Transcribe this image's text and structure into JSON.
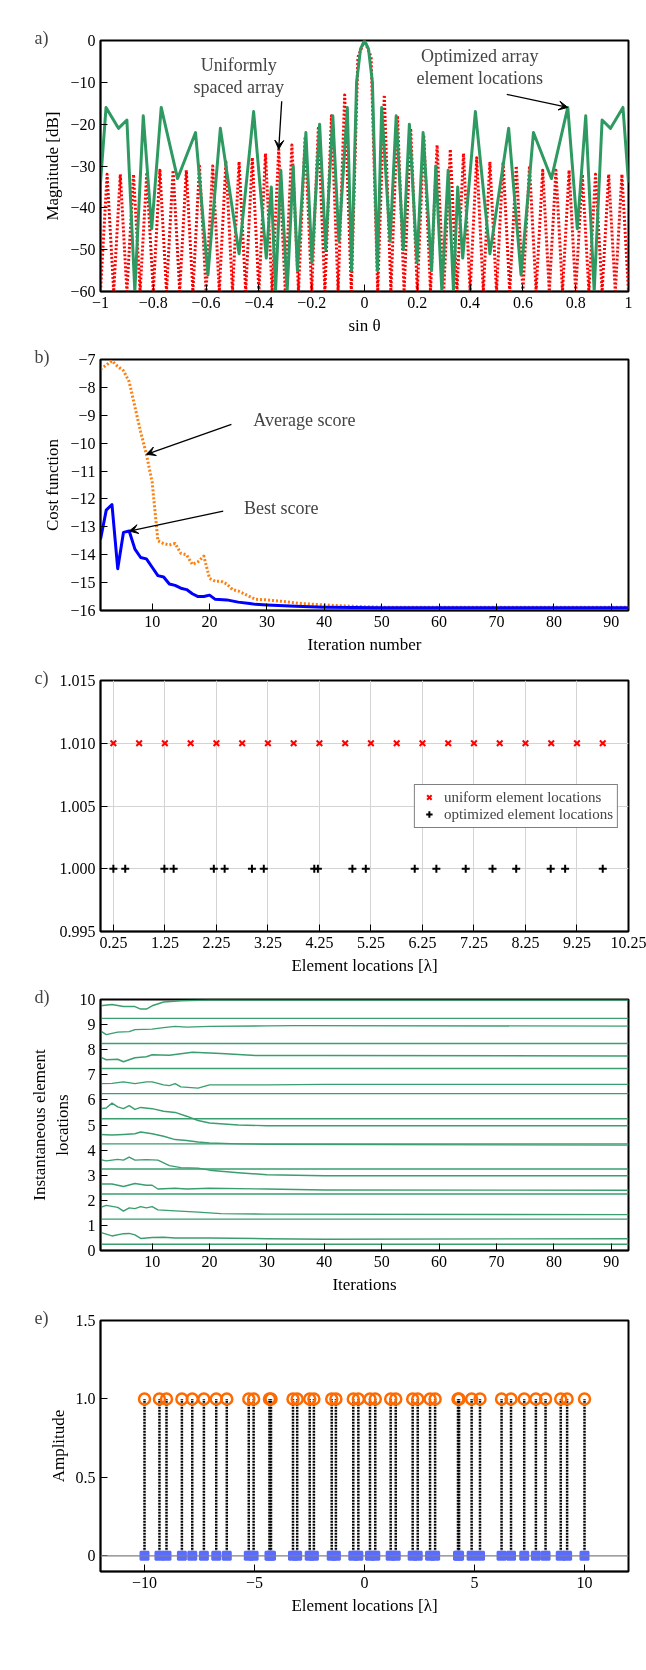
{
  "chart_data": [
    {
      "type": "line",
      "xlabel": "sin θ",
      "ylabel": "Magnitude [dB]",
      "xlim": [
        -1,
        1
      ],
      "ylim": [
        -60,
        0
      ],
      "xticks": [
        {
          "value": -1,
          "label": "−1"
        },
        {
          "value": -0.8,
          "label": "−0.8"
        },
        {
          "value": -0.6,
          "label": "−0.6"
        },
        {
          "value": -0.4,
          "label": "−0.4"
        },
        {
          "value": -0.2,
          "label": "−0.2"
        },
        0,
        0.2,
        0.4,
        0.6,
        0.8,
        1
      ],
      "yticks": [
        {
          "value": -60,
          "label": "−60"
        },
        {
          "value": -50,
          "label": "−50"
        },
        {
          "value": -40,
          "label": "−40"
        },
        {
          "value": -30,
          "label": "−30"
        },
        {
          "value": -20,
          "label": "−20"
        },
        {
          "value": -10,
          "label": "−10"
        },
        0
      ],
      "series": [
        {
          "color": "#ff0000",
          "line_style": "dotted",
          "x": [
            -1,
            -0.975,
            -0.95,
            -0.925,
            -0.9,
            -0.875,
            -0.85,
            -0.825,
            -0.8,
            -0.775,
            -0.75,
            -0.725,
            -0.7,
            -0.675,
            -0.65,
            -0.625,
            -0.6,
            -0.575,
            -0.55,
            -0.525,
            -0.5,
            -0.475,
            -0.45,
            -0.425,
            -0.4,
            -0.375,
            -0.35,
            -0.325,
            -0.3,
            -0.275,
            -0.25,
            -0.225,
            -0.2,
            -0.175,
            -0.15,
            -0.125,
            -0.1,
            -0.075,
            -0.05,
            -0.025,
            0,
            0.025,
            0.05,
            0.075,
            0.1,
            0.125,
            0.15,
            0.175,
            0.2,
            0.225,
            0.25,
            0.275,
            0.3,
            0.325,
            0.35,
            0.375,
            0.4,
            0.425,
            0.45,
            0.475,
            0.5,
            0.525,
            0.55,
            0.575,
            0.6,
            0.625,
            0.65,
            0.675,
            0.7,
            0.725,
            0.75,
            0.775,
            0.8,
            0.825,
            0.85,
            0.875,
            0.9,
            0.925,
            0.95,
            0.975,
            1
          ],
          "values": [
            -60,
            -32,
            -60,
            -32,
            -60,
            -32,
            -60,
            -32,
            -60,
            -31,
            -60,
            -31,
            -60,
            -31,
            -60,
            -30,
            -60,
            -30,
            -60,
            -29,
            -60,
            -29,
            -60,
            -28,
            -60,
            -27,
            -60,
            -26,
            -60,
            -25,
            -60,
            -23,
            -60,
            -21,
            -60,
            -18,
            -60,
            -13,
            -60,
            -4,
            0,
            -4,
            -60,
            -13,
            -60,
            -18,
            -60,
            -21,
            -60,
            -23,
            -60,
            -25,
            -60,
            -26,
            -60,
            -27,
            -60,
            -28,
            -60,
            -29,
            -60,
            -29,
            -60,
            -30,
            -60,
            -30,
            -60,
            -31,
            -60,
            -31,
            -60,
            -31,
            -60,
            -32,
            -60,
            -32,
            -60,
            -32,
            -60,
            -32,
            -60
          ]
        },
        {
          "color": "#2e9a62",
          "line_style": "solid",
          "x": [
            -1,
            -0.979,
            -0.932,
            -0.9,
            -0.87,
            -0.838,
            -0.806,
            -0.77,
            -0.708,
            -0.64,
            -0.593,
            -0.546,
            -0.475,
            -0.42,
            -0.372,
            -0.353,
            -0.337,
            -0.317,
            -0.293,
            -0.27,
            -0.254,
            -0.222,
            -0.199,
            -0.17,
            -0.147,
            -0.12,
            -0.097,
            -0.065,
            -0.049,
            -0.03,
            -0.015,
            0,
            0.015,
            0.03,
            0.049,
            0.065,
            0.097,
            0.12,
            0.147,
            0.17,
            0.199,
            0.222,
            0.254,
            0.27,
            0.293,
            0.317,
            0.337,
            0.353,
            0.372,
            0.42,
            0.475,
            0.546,
            0.593,
            0.64,
            0.708,
            0.77,
            0.806,
            0.838,
            0.87,
            0.9,
            0.932,
            0.979,
            1
          ],
          "values": [
            -34,
            -16,
            -21,
            -19,
            -60,
            -18,
            -45,
            -16,
            -33,
            -22,
            -56,
            -21,
            -51,
            -17,
            -52,
            -35,
            -60,
            -31,
            -60,
            -30,
            -55,
            -22,
            -53,
            -20,
            -50,
            -18,
            -48,
            -16,
            -55,
            -10,
            -2,
            0,
            -2,
            -10,
            -55,
            -16,
            -48,
            -18,
            -50,
            -20,
            -53,
            -22,
            -55,
            -30,
            -60,
            -31,
            -60,
            -35,
            -52,
            -17,
            -51,
            -21,
            -56,
            -22,
            -33,
            -16,
            -45,
            -18,
            -60,
            -19,
            -21,
            -16,
            -34
          ]
        }
      ],
      "annotations": [
        "a)",
        {
          "text": "Uniformly spaced array",
          "x": -0.325,
          "y": -26
        },
        {
          "text": "Optimized array element locations",
          "x": 0.77,
          "y": -16
        }
      ]
    },
    {
      "type": "line",
      "xlabel": "Iteration number",
      "ylabel": "Cost function",
      "xlim": [
        1,
        93
      ],
      "ylim": [
        -16,
        -7
      ],
      "xticks": [
        10,
        20,
        30,
        40,
        50,
        60,
        70,
        80,
        90
      ],
      "yticks": [
        {
          "value": -16,
          "label": "−16"
        },
        {
          "value": -15,
          "label": "−15"
        },
        {
          "value": -14,
          "label": "−14"
        },
        {
          "value": -13,
          "label": "−13"
        },
        {
          "value": -12,
          "label": "−12"
        },
        {
          "value": -11,
          "label": "−11"
        },
        {
          "value": -10,
          "label": "−10"
        },
        {
          "value": -9,
          "label": "−9"
        },
        {
          "value": -8,
          "label": "−8"
        },
        {
          "value": -7,
          "label": "−7"
        }
      ],
      "series": [
        {
          "color": "#ff7f0e",
          "line_style": "dotted",
          "x": [
            1,
            2,
            3,
            4,
            5,
            6,
            7,
            8,
            9,
            10,
            11,
            12,
            13,
            14,
            15,
            16,
            17,
            18,
            19,
            20,
            21,
            22,
            23,
            24,
            25,
            26,
            27,
            28,
            30,
            33,
            36,
            40,
            45,
            50,
            60,
            93
          ],
          "values": [
            -7.35,
            -7.2,
            -7.05,
            -7.25,
            -7.4,
            -7.8,
            -8.7,
            -9.6,
            -10.4,
            -11.4,
            -13.5,
            -13.6,
            -13.65,
            -13.6,
            -13.95,
            -14.0,
            -14.35,
            -14.25,
            -14.05,
            -14.85,
            -14.95,
            -14.95,
            -15.05,
            -15.25,
            -15.3,
            -15.4,
            -15.5,
            -15.6,
            -15.62,
            -15.68,
            -15.75,
            -15.8,
            -15.85,
            -15.88,
            -15.88,
            -15.88
          ]
        },
        {
          "color": "#0000ff",
          "line_style": "solid",
          "x": [
            1,
            2,
            3,
            4,
            5,
            6,
            7,
            8,
            9,
            10,
            11,
            12,
            13,
            14,
            15,
            16,
            17,
            18,
            19,
            20,
            21,
            23,
            25,
            27,
            28,
            30,
            35,
            40,
            50,
            93
          ],
          "values": [
            -13.45,
            -12.4,
            -12.2,
            -14.5,
            -13.2,
            -13.15,
            -13.8,
            -14.1,
            -14.15,
            -14.45,
            -14.75,
            -14.8,
            -15.05,
            -15.1,
            -15.2,
            -15.25,
            -15.4,
            -15.5,
            -15.5,
            -15.45,
            -15.6,
            -15.62,
            -15.7,
            -15.75,
            -15.78,
            -15.8,
            -15.85,
            -15.88,
            -15.9,
            -15.9
          ]
        }
      ],
      "annotations": [
        "b)",
        {
          "text": "Average score",
          "x": 9,
          "y": -10.4
        },
        {
          "text": "Best score",
          "x": 6,
          "y": -13.15
        }
      ]
    },
    {
      "type": "scatter",
      "xlabel": "Element locations [λ]",
      "xlim": [
        0,
        10.25
      ],
      "ylim": [
        0.995,
        1.015
      ],
      "xticks": [
        0.25,
        1.25,
        2.25,
        3.25,
        4.25,
        5.25,
        6.25,
        7.25,
        8.25,
        9.25,
        10.25
      ],
      "yticks": [
        0.995,
        {
          "value": 1.0,
          "label": "1.000"
        },
        1.005,
        {
          "value": 1.01,
          "label": "1.010"
        },
        1.015
      ],
      "grid": true,
      "legend": "right",
      "series": [
        {
          "name": "uniform element locations",
          "color": "#ff0000",
          "marker": "x",
          "x": [
            0.25,
            0.75,
            1.25,
            1.75,
            2.25,
            2.75,
            3.25,
            3.75,
            4.25,
            4.75,
            5.25,
            5.75,
            6.25,
            6.75,
            7.25,
            7.75,
            8.25,
            8.75,
            9.25,
            9.75
          ],
          "values": [
            1.01,
            1.01,
            1.01,
            1.01,
            1.01,
            1.01,
            1.01,
            1.01,
            1.01,
            1.01,
            1.01,
            1.01,
            1.01,
            1.01,
            1.01,
            1.01,
            1.01,
            1.01,
            1.01,
            1.01
          ]
        },
        {
          "name": "optimized element locations",
          "color": "#000000",
          "marker": "cross",
          "x": [
            0.25,
            0.48,
            1.24,
            1.42,
            2.2,
            2.41,
            2.94,
            3.17,
            4.15,
            4.22,
            4.89,
            5.15,
            6.1,
            6.52,
            7.09,
            7.61,
            8.07,
            8.74,
            9.02,
            9.75
          ],
          "values": [
            1.0,
            1.0,
            1.0,
            1.0,
            1.0,
            1.0,
            1.0,
            1.0,
            1.0,
            1.0,
            1.0,
            1.0,
            1.0,
            1.0,
            1.0,
            1.0,
            1.0,
            1.0,
            1.0,
            1.0
          ]
        }
      ],
      "annotations": [
        "c)"
      ]
    },
    {
      "type": "line",
      "xlabel": "Iterations",
      "ylabel": "Instantaneous element locations",
      "xlim": [
        1,
        93
      ],
      "ylim": [
        0,
        10
      ],
      "xticks": [
        10,
        20,
        30,
        40,
        50,
        60,
        70,
        80,
        90
      ],
      "yticks": [
        0,
        1,
        2,
        3,
        4,
        5,
        6,
        7,
        8,
        9,
        10
      ],
      "series": [
        {
          "color": "#3a9e6e",
          "x": [
            1,
            3,
            5,
            7,
            8,
            9,
            10,
            12,
            15,
            20,
            93
          ],
          "values": [
            9.75,
            9.8,
            9.72,
            9.72,
            9.62,
            9.62,
            9.75,
            9.9,
            9.95,
            9.98,
            9.98
          ]
        },
        {
          "color": "#3a9e6e",
          "x": [
            1,
            2,
            4,
            6,
            7,
            10,
            12,
            14,
            16,
            20,
            30,
            35,
            93
          ],
          "values": [
            8.75,
            8.6,
            8.7,
            8.72,
            8.8,
            8.82,
            8.88,
            8.93,
            8.9,
            8.93,
            8.95,
            8.96,
            8.94
          ]
        },
        {
          "color": "#3a9e6e",
          "x": [
            1,
            2,
            4,
            5,
            7,
            9,
            10,
            13,
            17,
            22,
            28,
            40,
            93
          ],
          "values": [
            7.7,
            7.6,
            7.62,
            7.52,
            7.68,
            7.72,
            7.8,
            7.78,
            7.9,
            7.85,
            7.77,
            7.77,
            7.75
          ]
        },
        {
          "color": "#3a9e6e",
          "x": [
            1,
            3,
            5,
            7,
            9,
            10,
            12,
            13,
            14,
            15,
            18,
            20,
            25,
            30,
            40,
            93
          ],
          "values": [
            6.65,
            6.66,
            6.72,
            6.65,
            6.72,
            6.72,
            6.6,
            6.57,
            6.65,
            6.52,
            6.47,
            6.6,
            6.6,
            6.6,
            6.62,
            6.62
          ]
        },
        {
          "color": "#3a9e6e",
          "x": [
            1,
            2,
            3,
            4,
            5,
            6,
            7,
            8,
            10,
            12,
            14,
            16,
            18,
            20,
            25,
            30,
            93
          ],
          "values": [
            5.65,
            5.68,
            5.87,
            5.72,
            5.65,
            5.77,
            5.62,
            5.7,
            5.65,
            5.55,
            5.5,
            5.35,
            5.18,
            5.08,
            5.0,
            4.97,
            4.97
          ]
        },
        {
          "color": "#3a9e6e",
          "x": [
            1,
            3,
            5,
            7,
            8,
            10,
            12,
            14,
            16,
            18,
            20,
            25,
            30,
            93
          ],
          "values": [
            4.62,
            4.6,
            4.62,
            4.65,
            4.72,
            4.65,
            4.55,
            4.42,
            4.38,
            4.32,
            4.28,
            4.25,
            4.23,
            4.2
          ]
        },
        {
          "color": "#3a9e6e",
          "x": [
            1,
            2,
            4,
            5,
            6,
            7,
            9,
            11,
            13,
            15,
            18,
            20,
            25,
            30,
            40,
            93
          ],
          "values": [
            3.62,
            3.57,
            3.63,
            3.6,
            3.72,
            3.6,
            3.62,
            3.6,
            3.38,
            3.3,
            3.28,
            3.2,
            3.1,
            3.02,
            2.98,
            2.98
          ]
        },
        {
          "color": "#3a9e6e",
          "x": [
            1,
            3,
            5,
            7,
            9,
            10,
            11,
            14,
            16,
            20,
            30,
            40,
            93
          ],
          "values": [
            2.65,
            2.65,
            2.55,
            2.67,
            2.6,
            2.6,
            2.45,
            2.48,
            2.45,
            2.48,
            2.45,
            2.41,
            2.4
          ]
        },
        {
          "color": "#3a9e6e",
          "x": [
            1,
            2,
            4,
            5,
            6,
            7,
            8,
            9,
            10,
            11,
            14,
            18,
            22,
            30,
            93
          ],
          "values": [
            1.72,
            1.8,
            1.72,
            1.57,
            1.7,
            1.67,
            1.75,
            1.7,
            1.75,
            1.62,
            1.58,
            1.53,
            1.47,
            1.45,
            1.43
          ]
        },
        {
          "color": "#3a9e6e",
          "x": [
            1,
            3,
            5,
            6,
            7,
            8,
            10,
            12,
            14,
            20,
            30,
            40,
            93
          ],
          "values": [
            0.72,
            0.58,
            0.67,
            0.68,
            0.62,
            0.48,
            0.52,
            0.53,
            0.5,
            0.5,
            0.47,
            0.45,
            0.47
          ]
        },
        {
          "color": "#3a9e6e",
          "x": [
            1,
            93
          ],
          "values": [
            0.25,
            0.25
          ]
        },
        {
          "color": "#3a9e6e",
          "x": [
            1,
            93
          ],
          "values": [
            1.25,
            1.25
          ]
        },
        {
          "color": "#3a9e6e",
          "x": [
            1,
            93
          ],
          "values": [
            2.25,
            2.25
          ]
        },
        {
          "color": "#3a9e6e",
          "x": [
            1,
            93
          ],
          "values": [
            3.25,
            3.25
          ]
        },
        {
          "color": "#3a9e6e",
          "x": [
            1,
            93
          ],
          "values": [
            4.25,
            4.25
          ]
        },
        {
          "color": "#3a9e6e",
          "x": [
            1,
            93
          ],
          "values": [
            5.25,
            5.25
          ]
        },
        {
          "color": "#3a9e6e",
          "x": [
            1,
            93
          ],
          "values": [
            6.25,
            6.25
          ]
        },
        {
          "color": "#3a9e6e",
          "x": [
            1,
            93
          ],
          "values": [
            7.25,
            7.25
          ]
        },
        {
          "color": "#3a9e6e",
          "x": [
            1,
            93
          ],
          "values": [
            8.25,
            8.25
          ]
        },
        {
          "color": "#3a9e6e",
          "x": [
            1,
            93
          ],
          "values": [
            9.25,
            9.25
          ]
        }
      ],
      "annotations": [
        "d)"
      ]
    },
    {
      "type": "lollipop",
      "xlabel": "Element locations [λ]",
      "ylabel": "Amplitude",
      "xlim": [
        -12,
        12
      ],
      "ylim": [
        -0.1,
        1.5
      ],
      "xticks": [
        {
          "value": -10,
          "label": "−10"
        },
        {
          "value": -5,
          "label": "−5"
        },
        0,
        5,
        10
      ],
      "yticks": [
        0,
        0.5,
        {
          "value": 1,
          "label": "1.0"
        },
        1.5
      ],
      "ref_lines": [
        {
          "axis": "y",
          "value": 0,
          "color": "#808080"
        }
      ],
      "series": [
        {
          "color": "#ff6a00",
          "marker": "circle",
          "x": [
            -10.0,
            -9.32,
            -9.0,
            -8.3,
            -7.83,
            -7.3,
            -6.74,
            -6.26,
            -5.26,
            -5.04,
            -4.32,
            -4.25,
            -3.25,
            -3.06,
            -2.49,
            -2.3,
            -1.49,
            -1.3,
            -0.51,
            -0.28,
            0.25,
            0.49,
            1.19,
            1.42,
            2.19,
            2.42,
            2.98,
            3.21,
            4.25,
            4.3,
            4.87,
            5.25,
            6.23,
            6.66,
            7.26,
            7.79,
            8.23,
            8.92,
            9.21,
            10.0
          ],
          "values": [
            1,
            1,
            1,
            1,
            1,
            1,
            1,
            1,
            1,
            1,
            1,
            1,
            1,
            1,
            1,
            1,
            1,
            1,
            1,
            1,
            1,
            1,
            1,
            1,
            1,
            1,
            1,
            1,
            1,
            1,
            1,
            1,
            1,
            1,
            1,
            1,
            1,
            1,
            1,
            1
          ]
        },
        {
          "type": "scatter",
          "color": "#5a6cff",
          "marker": "square",
          "x": [
            -10.0,
            -9.32,
            -9.0,
            -8.3,
            -7.83,
            -7.3,
            -6.74,
            -6.26,
            -5.26,
            -5.04,
            -4.32,
            -4.25,
            -3.25,
            -3.06,
            -2.49,
            -2.3,
            -1.49,
            -1.3,
            -0.51,
            -0.28,
            0.25,
            0.49,
            1.19,
            1.42,
            2.19,
            2.42,
            2.98,
            3.21,
            4.25,
            4.3,
            4.87,
            5.25,
            6.23,
            6.66,
            7.26,
            7.79,
            8.23,
            8.92,
            9.21,
            10.0
          ],
          "values": [
            0,
            0,
            0,
            0,
            0,
            0,
            0,
            0,
            0,
            0,
            0,
            0,
            0,
            0,
            0,
            0,
            0,
            0,
            0,
            0,
            0,
            0,
            0,
            0,
            0,
            0,
            0,
            0,
            0,
            0,
            0,
            0,
            0,
            0,
            0,
            0,
            0,
            0,
            0,
            0
          ]
        }
      ],
      "annotations": [
        "e)"
      ]
    }
  ]
}
